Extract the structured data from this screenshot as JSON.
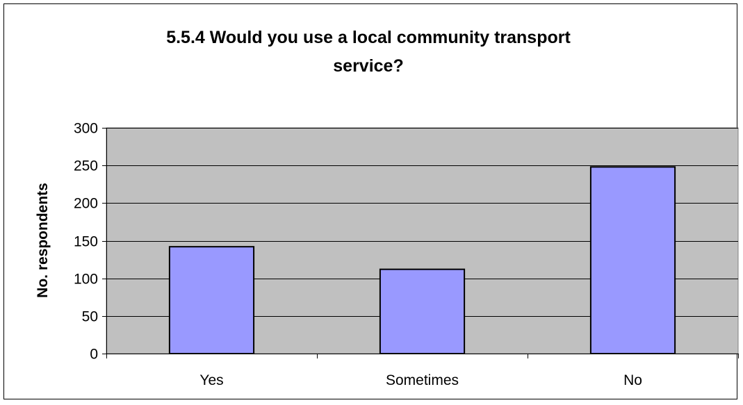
{
  "chart_data": {
    "type": "bar",
    "title_lines": [
      "5.5.4 Would you use a local community transport",
      "service?"
    ],
    "xlabel": "",
    "ylabel": "No. respondents",
    "categories": [
      "Yes",
      "Sometimes",
      "No"
    ],
    "values": [
      142,
      112,
      248
    ],
    "ylim": [
      0,
      300
    ],
    "yticks": [
      0,
      50,
      100,
      150,
      200,
      250,
      300
    ],
    "grid": true,
    "legend": "none",
    "colors": {
      "plot_background": "#c0c0c0",
      "bar_fill": "#9999ff",
      "bar_stroke": "#000000",
      "gridline": "#000000"
    }
  }
}
